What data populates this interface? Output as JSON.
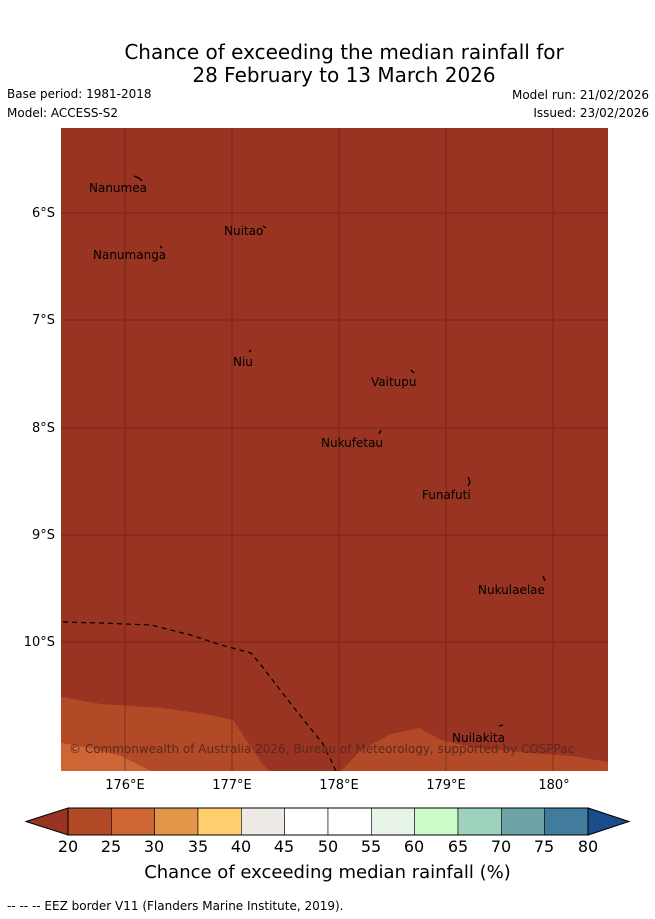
{
  "title": {
    "line1": "Chance of exceeding the median rainfall for",
    "line2": "28 February to 13 March 2026"
  },
  "meta": {
    "base_period": "Base period: 1981-2018",
    "model": "Model: ACCESS-S2",
    "model_run": "Model run: 21/02/2026",
    "issued": "Issued: 23/02/2026"
  },
  "map": {
    "background_color": "#993322",
    "places": [
      {
        "name": "Nanumea"
      },
      {
        "name": "Nuitao"
      },
      {
        "name": "Nanumanga"
      },
      {
        "name": "Niu"
      },
      {
        "name": "Vaitupu"
      },
      {
        "name": "Nukufetau"
      },
      {
        "name": "Funafuti"
      },
      {
        "name": "Nukulaelae"
      },
      {
        "name": "Nuilakita"
      }
    ],
    "copyright": "© Commonwealth of Australia 2026, Bureau of Meteorology, supported by COSPPac",
    "lat_labels": [
      "6°S",
      "7°S",
      "8°S",
      "9°S",
      "10°S"
    ],
    "lon_labels": [
      "176°E",
      "177°E",
      "178°E",
      "179°E",
      "180°"
    ]
  },
  "colorbar": {
    "ticks": [
      "20",
      "25",
      "30",
      "35",
      "40",
      "45",
      "50",
      "55",
      "60",
      "65",
      "70",
      "75",
      "80"
    ],
    "colors": [
      "#993322",
      "#b24a28",
      "#cd6535",
      "#e39549",
      "#fecf6c",
      "#eeebe7",
      "#ffffff",
      "#ffffff",
      "#e8f4e8",
      "#ccfcca",
      "#9ed2bd",
      "#6ea3a7",
      "#417c9d",
      "#1a4d8c"
    ],
    "label": "Chance of exceeding median rainfall (%)"
  },
  "legend": {
    "eez": "--  --  -- EEZ border V11 (Flanders Marine Institute, 2019)."
  }
}
